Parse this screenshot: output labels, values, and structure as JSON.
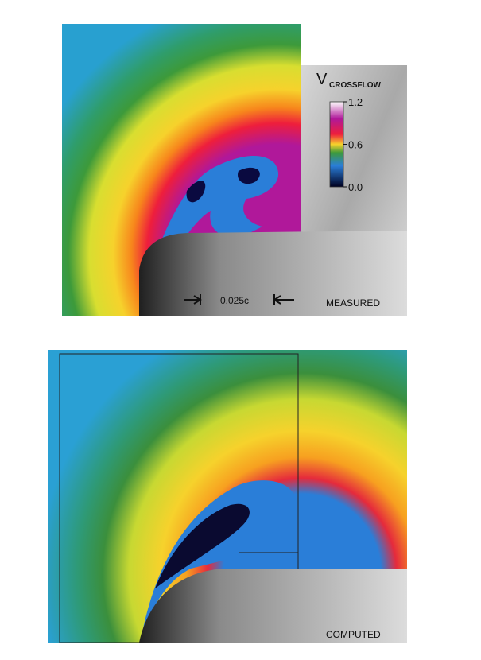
{
  "legend": {
    "title": "V",
    "title_sub": "CROSSFLOW",
    "lim": [
      0,
      1.2
    ],
    "ticks": [
      1.2,
      0.6,
      {
        "value": 0,
        "label": "0.0"
      }
    ]
  },
  "measured": {
    "scale_label": "0.025c",
    "label": "MEASURED"
  },
  "computed": {
    "label": "COMPUTED"
  }
}
